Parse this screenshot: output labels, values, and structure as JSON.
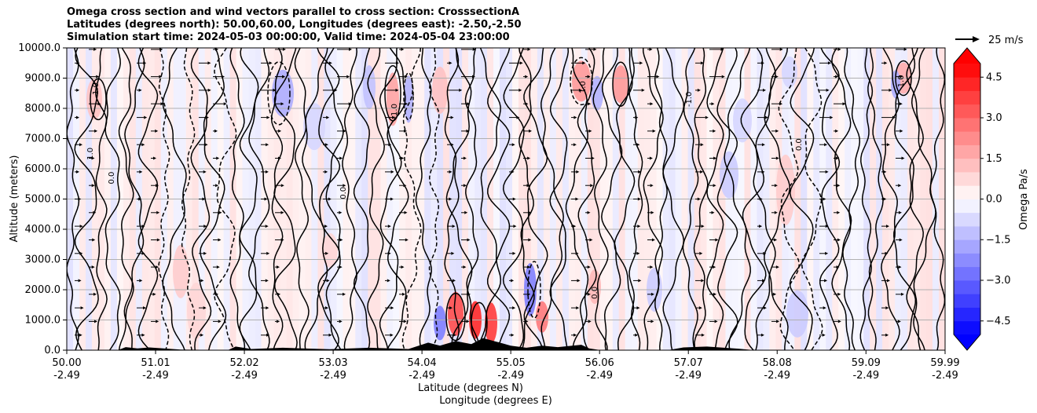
{
  "chart_data": {
    "type": "heatmap",
    "title_lines": [
      "Omega cross section and wind vectors parallel to cross section: CrosssectionA",
      "Latitudes (degrees north): 50.00,60.00, Longitudes (degrees east): -2.50,-2.50",
      "Simulation start time: 2024-05-03 00:00:00, Valid time: 2024-05-04 23:00:00"
    ],
    "ylabel": "Altitude (meters)",
    "xlabel_lat": "Latitude (degrees N)",
    "xlabel_lon": "Longitude (degrees E)",
    "ylim": [
      0,
      10000
    ],
    "y_ticks": [
      "0.0",
      "1000.0",
      "2000.0",
      "3000.0",
      "4000.0",
      "5000.0",
      "6000.0",
      "7000.0",
      "8000.0",
      "9000.0",
      "10000.0"
    ],
    "x_ticks": [
      {
        "lat": "50.00",
        "lon": "-2.49"
      },
      {
        "lat": "51.01",
        "lon": "-2.49"
      },
      {
        "lat": "52.02",
        "lon": "-2.49"
      },
      {
        "lat": "53.03",
        "lon": "-2.49"
      },
      {
        "lat": "54.04",
        "lon": "-2.49"
      },
      {
        "lat": "55.05",
        "lon": "-2.49"
      },
      {
        "lat": "56.06",
        "lon": "-2.49"
      },
      {
        "lat": "57.07",
        "lon": "-2.49"
      },
      {
        "lat": "58.08",
        "lon": "-2.49"
      },
      {
        "lat": "59.09",
        "lon": "-2.49"
      },
      {
        "lat": "59.99",
        "lon": "-2.49"
      }
    ],
    "colorbar": {
      "label": "Omega Pa/s",
      "min": -5.0,
      "max": 5.0,
      "step": 0.5,
      "extend": "both",
      "tick_labels": [
        "4.5",
        "3.0",
        "1.5",
        "0.0",
        "−1.5",
        "−3.0",
        "−4.5"
      ],
      "tick_values": [
        4.5,
        3.0,
        1.5,
        0.0,
        -1.5,
        -3.0,
        -4.5
      ]
    },
    "vector_key": {
      "label": "25 m/s"
    },
    "contour_labels": [
      "0.0",
      "-1.0",
      "1.0",
      "-1.0",
      "0.0",
      "1.0",
      "0.0",
      "-1.0",
      "0.0",
      "1.0"
    ],
    "colors": {
      "positive": "#ff0000",
      "negative": "#0000ff",
      "zero": "#ffffff",
      "terrain": "#000000"
    }
  }
}
